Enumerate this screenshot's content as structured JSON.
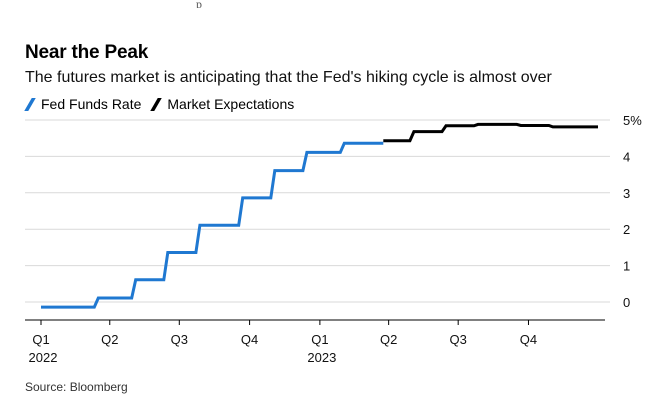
{
  "header": {
    "top_fragment": "p",
    "title": "Near the Peak",
    "subtitle": "The futures market is anticipating that the Fed's hiking cycle is almost over"
  },
  "footer": {
    "source": "Source: Bloomberg"
  },
  "colors": {
    "fed_funds": "#1f78d1",
    "expectations": "#000000",
    "grid": "#d9d9d9",
    "axis": "#000000"
  },
  "chart_data": {
    "type": "line",
    "title": "Near the Peak",
    "subtitle": "The futures market is anticipating that the Fed's hiking cycle is almost over",
    "xlabel": "",
    "ylabel": "",
    "ylim": [
      -0.25,
      5.3
    ],
    "y_ticks": [
      {
        "value": 0,
        "label": "0"
      },
      {
        "value": 1,
        "label": "1"
      },
      {
        "value": 2,
        "label": "2"
      },
      {
        "value": 3,
        "label": "3"
      },
      {
        "value": 4,
        "label": "4"
      },
      {
        "value": 5,
        "label": "5%"
      }
    ],
    "x_range": [
      "2022-01-01",
      "2023-12-31"
    ],
    "x_ticks": [
      {
        "date": "2022-01-01",
        "label": "Q1",
        "sublabel": "2022"
      },
      {
        "date": "2022-04-01",
        "label": "Q2"
      },
      {
        "date": "2022-07-01",
        "label": "Q3"
      },
      {
        "date": "2022-10-01",
        "label": "Q4"
      },
      {
        "date": "2023-01-01",
        "label": "Q1",
        "sublabel": "2023"
      },
      {
        "date": "2023-04-01",
        "label": "Q2"
      },
      {
        "date": "2023-07-01",
        "label": "Q3"
      },
      {
        "date": "2023-10-01",
        "label": "Q4"
      }
    ],
    "grid": true,
    "legend_position": "top-left",
    "series": [
      {
        "name": "Fed Funds Rate",
        "color": "#1f78d1",
        "step": true,
        "points": [
          [
            "2022-01-01",
            0.08
          ],
          [
            "2022-03-17",
            0.33
          ],
          [
            "2022-05-05",
            0.83
          ],
          [
            "2022-06-16",
            1.58
          ],
          [
            "2022-07-28",
            2.33
          ],
          [
            "2022-09-22",
            3.08
          ],
          [
            "2022-11-03",
            3.83
          ],
          [
            "2022-12-15",
            4.33
          ],
          [
            "2023-02-02",
            4.58
          ],
          [
            "2023-03-25",
            4.58
          ]
        ]
      },
      {
        "name": "Market Expectations",
        "color": "#000000",
        "step": true,
        "points": [
          [
            "2023-03-25",
            4.65
          ],
          [
            "2023-05-04",
            4.9
          ],
          [
            "2023-06-15",
            5.06
          ],
          [
            "2023-07-27",
            5.1
          ],
          [
            "2023-09-21",
            5.07
          ],
          [
            "2023-11-02",
            5.03
          ],
          [
            "2023-12-31",
            5.03
          ]
        ]
      }
    ]
  }
}
